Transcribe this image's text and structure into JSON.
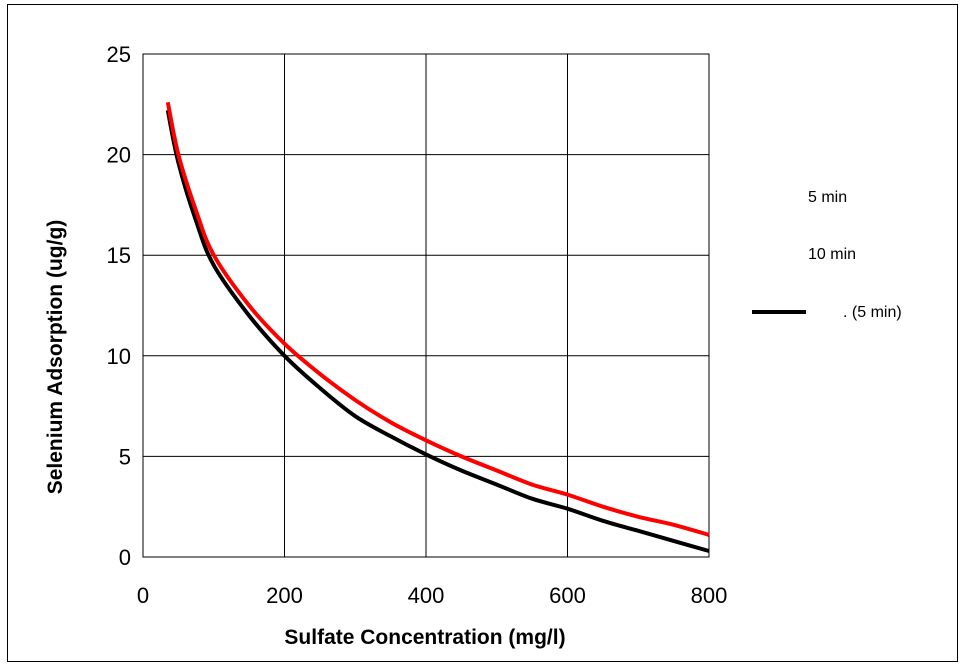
{
  "chart_data": {
    "type": "line",
    "xlabel": "Sulfate Concentration (mg/l)",
    "ylabel": "Selenium Adsorption (ug/g)",
    "xlim": [
      0,
      800
    ],
    "ylim": [
      0,
      25
    ],
    "x_ticks": [
      "0",
      "200",
      "400",
      "600",
      "800"
    ],
    "y_ticks": [
      "0",
      "5",
      "10",
      "15",
      "20",
      "25"
    ],
    "grid": true,
    "legend_position": "right",
    "legend": [
      "5 min",
      "10 min",
      ". (5 min)"
    ],
    "series": [
      {
        "name": ". (5 min)",
        "color": "#000000",
        "x": [
          35,
          50,
          75,
          100,
          150,
          200,
          250,
          300,
          350,
          400,
          450,
          500,
          550,
          600,
          650,
          700,
          750,
          800
        ],
        "y": [
          22.2,
          19.6,
          16.7,
          14.5,
          12.0,
          10.0,
          8.4,
          7.0,
          6.0,
          5.1,
          4.3,
          3.6,
          2.9,
          2.4,
          1.8,
          1.3,
          0.8,
          0.3
        ]
      },
      {
        "name": "",
        "color": "#ff0000",
        "x": [
          35,
          50,
          75,
          100,
          150,
          200,
          250,
          300,
          350,
          400,
          450,
          500,
          550,
          600,
          650,
          700,
          750,
          800
        ],
        "y": [
          22.6,
          20.0,
          17.2,
          15.0,
          12.5,
          10.6,
          9.1,
          7.8,
          6.7,
          5.8,
          5.0,
          4.3,
          3.6,
          3.1,
          2.5,
          2.0,
          1.6,
          1.1
        ]
      }
    ]
  }
}
